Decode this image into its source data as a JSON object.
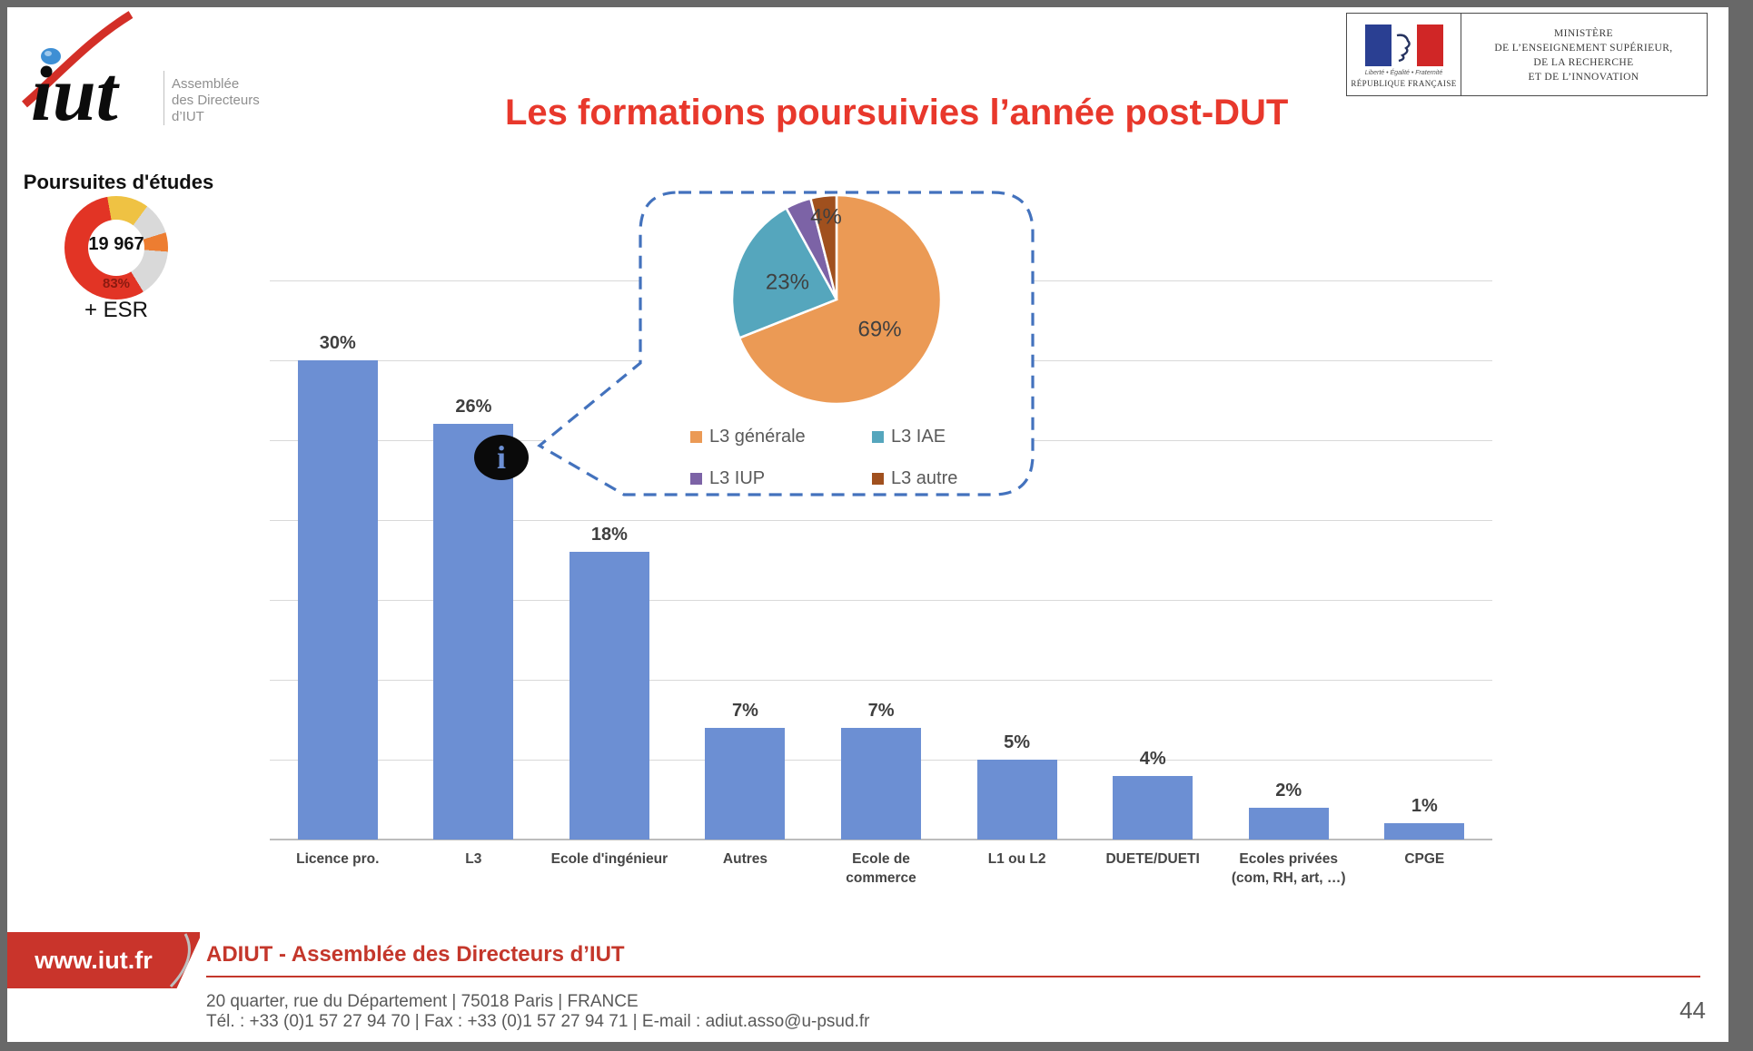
{
  "logo": {
    "brand": "iut",
    "org_lines": [
      "Assemblée",
      "des Directeurs",
      "d’IUT"
    ]
  },
  "ministry": {
    "motto": "Liberté • Égalité • Fraternité",
    "republic": "RÉPUBLIQUE FRANÇAISE",
    "lines": [
      "MINISTÈRE",
      "DE L’ENSEIGNEMENT SUPÉRIEUR,",
      "DE LA RECHERCHE",
      "ET DE L’INNOVATION"
    ]
  },
  "title": "Les formations poursuivies l’année post-DUT",
  "sidebar": {
    "heading": "Poursuites d'études",
    "donut_center": "19 967",
    "donut_pct": "83%",
    "esr": "+ ESR"
  },
  "info_icon_glyph": "i",
  "footer": {
    "url": "www.iut.fr",
    "org": "ADIUT - Assemblée des Directeurs d’IUT",
    "address": "20 quarter, rue du Département | 75018 Paris | FRANCE",
    "contacts": "Tél. : +33 (0)1 57 27 94 70 | Fax : +33 (0)1 57 27 94 71 | E-mail : adiut.asso@u-psud.fr",
    "page": "44"
  },
  "colors": {
    "bar_blue": "#6c8fd3",
    "title_red": "#e8382c",
    "footer_red": "#c4372b",
    "callout_dash_blue": "#4372bd",
    "gridline": "#d9d9d9",
    "label_gray": "#595959"
  },
  "chart_data": [
    {
      "type": "bar",
      "title": "Les formations poursuivies l’année post-DUT",
      "categories": [
        "Licence pro.",
        "L3",
        "Ecole d'ingénieur",
        "Autres",
        "Ecole de commerce",
        "L1 ou L2",
        "DUETE/DUETI",
        "Ecoles privées (com, RH, art, …)",
        "CPGE"
      ],
      "values": [
        30,
        26,
        18,
        7,
        7,
        5,
        4,
        2,
        1
      ],
      "value_labels": [
        "30%",
        "26%",
        "18%",
        "7%",
        "7%",
        "5%",
        "4%",
        "2%",
        "1%"
      ],
      "unit": "%",
      "xlabel": "",
      "ylabel": "",
      "ylim": [
        0,
        35
      ],
      "gridline_step": 5,
      "grid": "horizontal",
      "legend": "none",
      "bar_color": "#6c8fd3",
      "annotation": "info icon on the L3 bar opens a pie-chart callout detailing L3"
    },
    {
      "type": "pie",
      "context": "callout detail of the L3 bar",
      "slices": [
        {
          "label": "L3 générale",
          "value": 69,
          "color": "#eb9a55",
          "pct_label": "69%",
          "label_shown": true
        },
        {
          "label": "L3 IAE",
          "value": 23,
          "color": "#55a6bd",
          "pct_label": "23%",
          "label_shown": true
        },
        {
          "label": "L3 IUP",
          "value": 4,
          "color": "#7c63a6",
          "pct_label": "4%",
          "label_shown": false
        },
        {
          "label": "L3 autre",
          "value": 4,
          "color": "#a0501e",
          "pct_label": "4%",
          "label_shown": true
        }
      ],
      "start_angle_deg": 0,
      "direction": "clockwise",
      "legend_position": "bottom"
    },
    {
      "type": "donut",
      "context": "sidebar 'Poursuites d'études' mini chart",
      "center_label": "19 967",
      "callout_label": "83%",
      "segments": [
        {
          "value": 13,
          "color": "#efc243"
        },
        {
          "value": 10,
          "color": "#d9d9d9"
        },
        {
          "value": 6,
          "color": "#ed7d31"
        },
        {
          "value": 15,
          "color": "#d9d9d9"
        },
        {
          "value": 56,
          "color": "#e23425"
        }
      ]
    }
  ]
}
